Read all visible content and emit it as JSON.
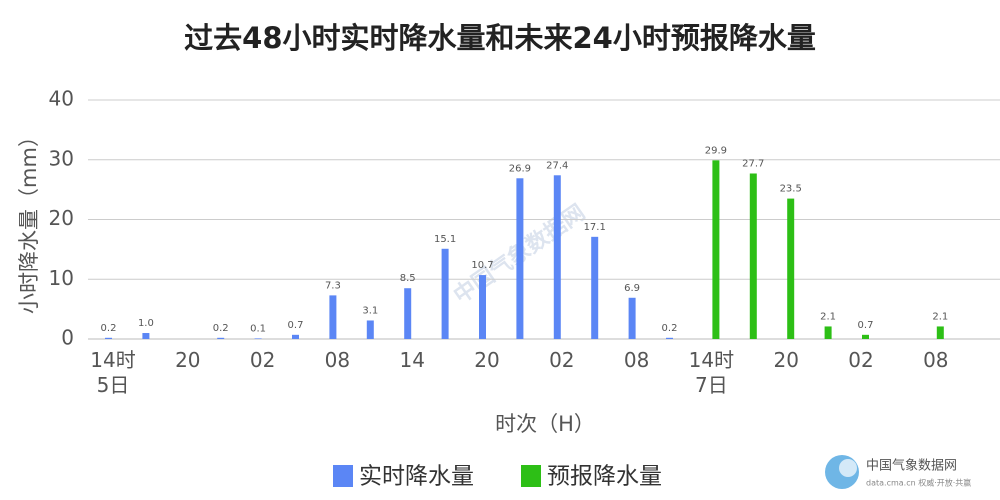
{
  "chart_data": {
    "type": "bar",
    "title": "过去48小时实时降水量和未来24小时预报降水量",
    "y_label": "小时降水量（mm）",
    "x_label": "时次（H）",
    "categories": [
      "14时\n5日",
      null,
      "20",
      null,
      "02",
      null,
      "08",
      null,
      "14",
      null,
      "20",
      null,
      "02",
      null,
      "08",
      null,
      "14时\n7日",
      null,
      "20",
      null,
      "02",
      null,
      "08"
    ],
    "series": [
      {
        "name": "实时降水量",
        "color": "#5b86f5",
        "values": [
          0.2,
          1.0,
          null,
          0.2,
          0.1,
          0.7,
          7.3,
          3.1,
          8.5,
          15.1,
          10.7,
          26.9,
          27.4,
          17.1,
          6.9,
          0.2,
          null,
          null,
          null,
          null,
          null,
          null,
          null
        ],
        "value_labels": [
          "0.2",
          "1.0",
          null,
          "0.2",
          "0.1",
          "0.7",
          "7.3",
          "3.1",
          "8.5",
          "15.1",
          "10.7",
          "26.9",
          "27.4",
          "17.1",
          "6.9",
          "0.2",
          null,
          null,
          null,
          null,
          null,
          null,
          null
        ]
      },
      {
        "name": "预报降水量",
        "color": "#2dbf16",
        "values": [
          null,
          null,
          null,
          null,
          null,
          null,
          null,
          null,
          null,
          null,
          null,
          null,
          null,
          null,
          null,
          null,
          29.9,
          27.7,
          23.5,
          2.1,
          0.7,
          null,
          2.1
        ]
      }
    ],
    "ylim": [
      0,
      40
    ],
    "yticks": [
      0,
      10,
      20,
      30,
      40
    ],
    "grid": true,
    "legend": "bottom",
    "watermark": "中国气象数据网",
    "logo_text": "中国气象数据网",
    "logo_subtext": "data.cma.cn 权威·开放·共赢"
  }
}
